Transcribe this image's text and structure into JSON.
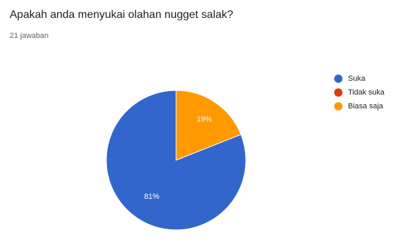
{
  "question": "Apakah anda menyukai olahan nugget salak?",
  "response_count": "21 jawaban",
  "chart_data": {
    "type": "pie",
    "title": "Apakah anda menyukai olahan nugget salak?",
    "categories": [
      "Suka",
      "Tidak suka",
      "Biasa saja"
    ],
    "values": [
      81,
      0,
      19
    ],
    "labels": [
      "81%",
      "",
      "19%"
    ],
    "colors": [
      "#3366cc",
      "#dc3912",
      "#ff9900"
    ],
    "legend": "right"
  }
}
